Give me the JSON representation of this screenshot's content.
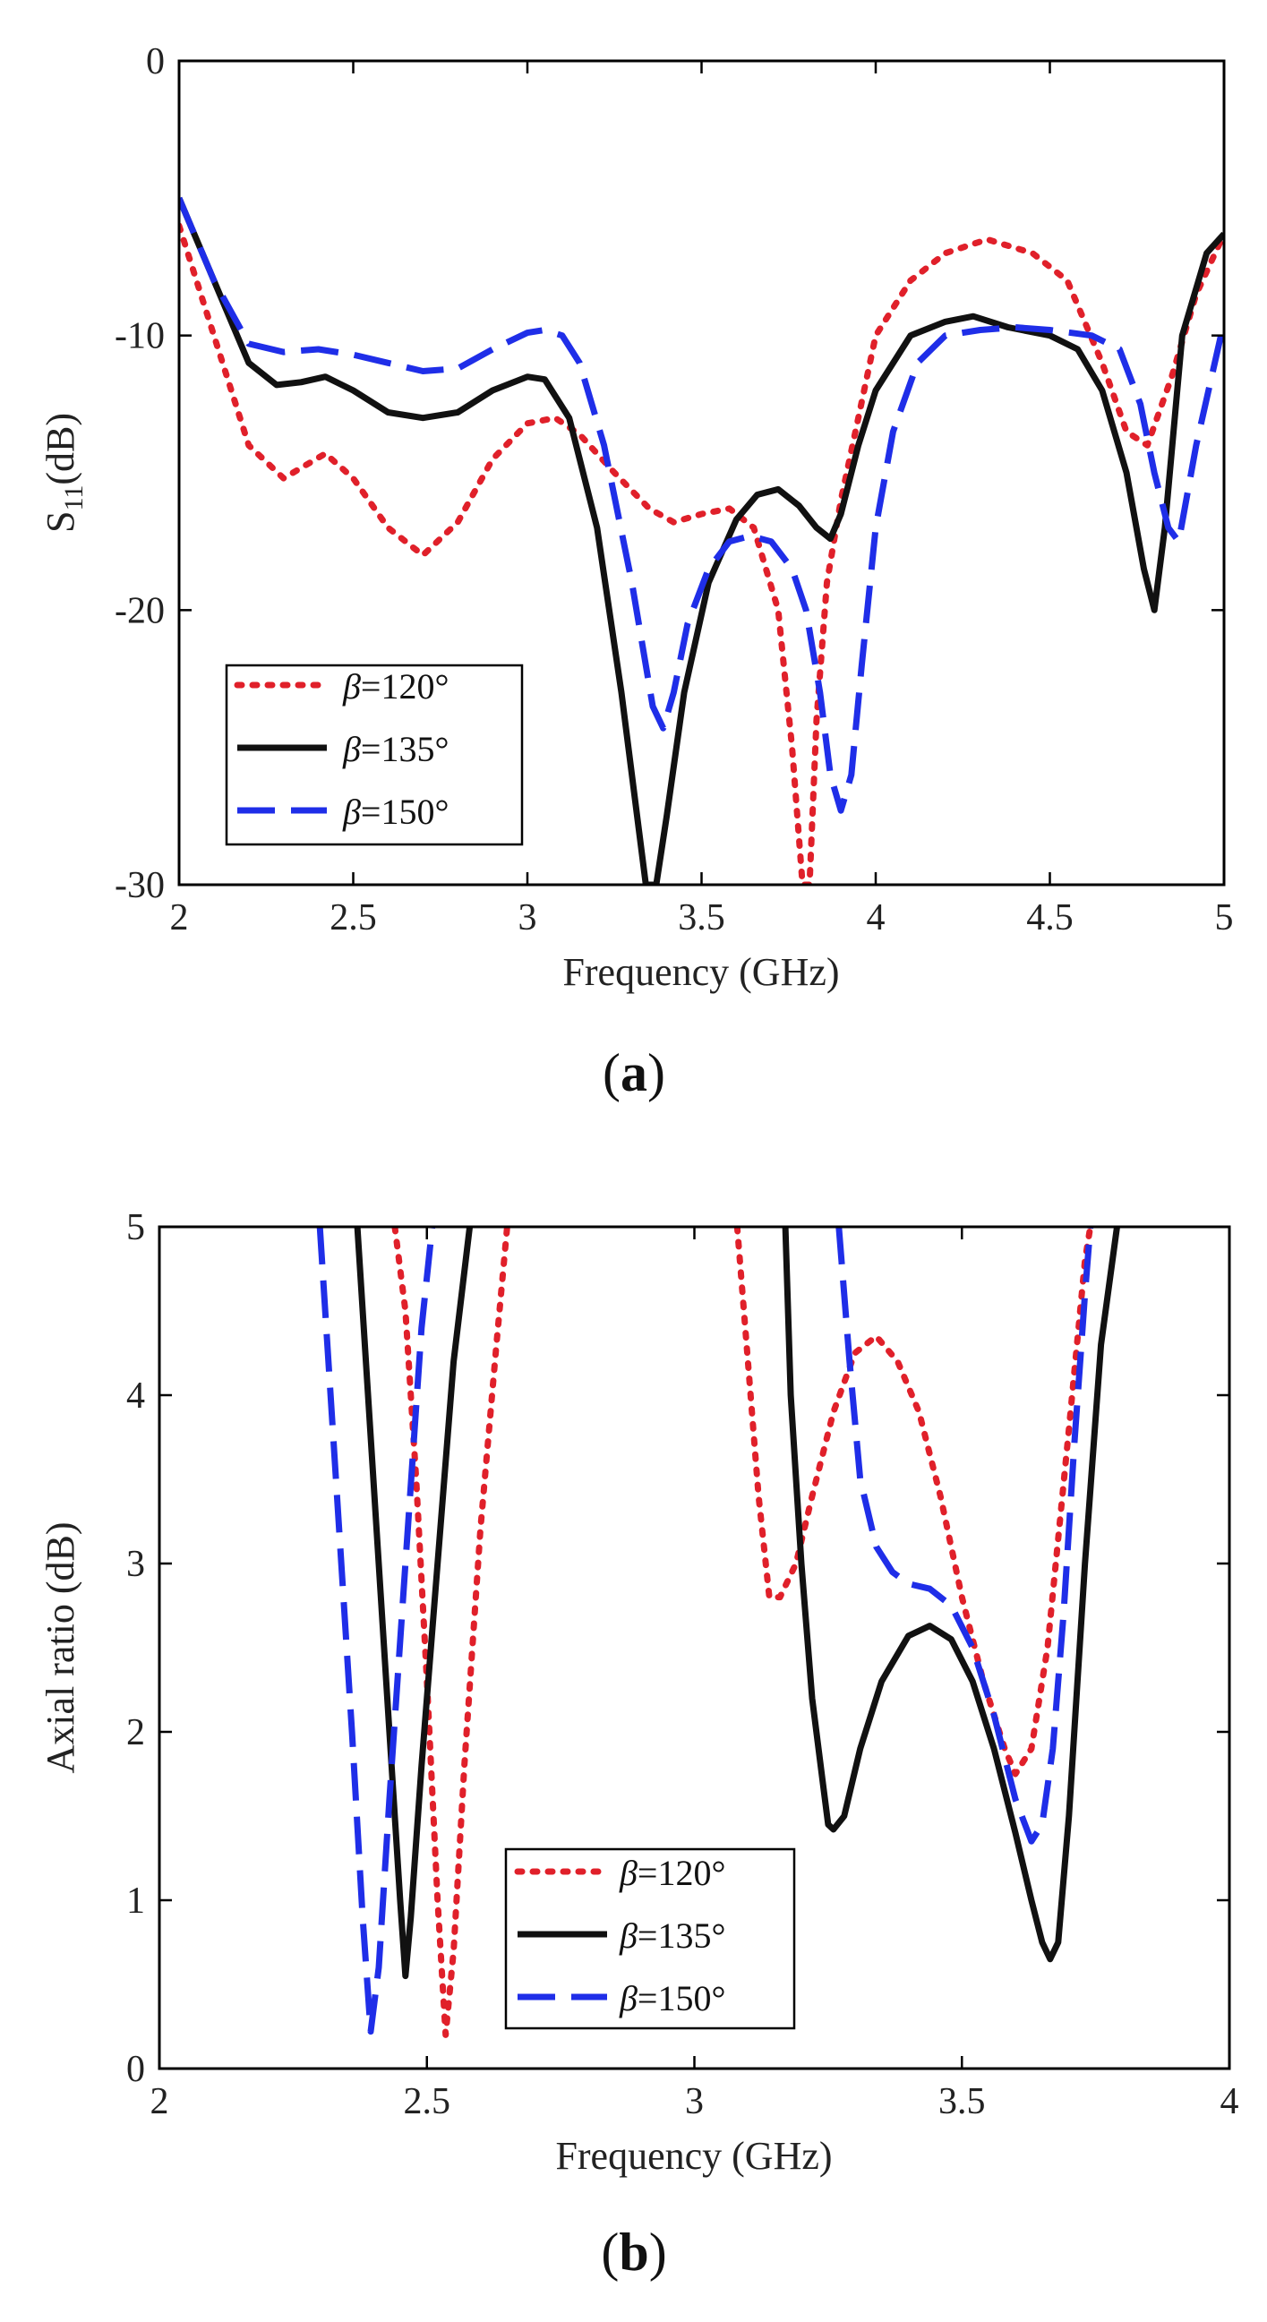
{
  "chart_data": [
    {
      "type": "line",
      "panel_label": "a",
      "xlabel": "Frequency (GHz)",
      "ylabel": "S",
      "ylabel_sub": "11",
      "ylabel_unit": "(dB)",
      "xlim": [
        2,
        5
      ],
      "ylim": [
        -30,
        0
      ],
      "xticks": [
        2,
        2.5,
        3,
        3.5,
        4,
        4.5,
        5
      ],
      "yticks": [
        -30,
        -20,
        -10,
        0
      ],
      "grid": false,
      "legend_position": "bottom-left",
      "series": [
        {
          "name": "=120°",
          "symbol": "β",
          "color": "#e0202a",
          "dash": "dotted",
          "x": [
            2.0,
            2.1,
            2.2,
            2.3,
            2.42,
            2.5,
            2.6,
            2.7,
            2.8,
            2.9,
            3.0,
            3.08,
            3.15,
            3.25,
            3.35,
            3.42,
            3.5,
            3.58,
            3.65,
            3.72,
            3.76,
            3.79,
            3.81,
            3.83,
            3.86,
            3.9,
            3.95,
            4.0,
            4.1,
            4.2,
            4.32,
            4.45,
            4.55,
            4.65,
            4.72,
            4.78,
            4.85,
            4.92,
            5.0
          ],
          "y": [
            -6.0,
            -10.0,
            -14.0,
            -15.2,
            -14.3,
            -15.2,
            -17.0,
            -18.0,
            -16.8,
            -14.5,
            -13.2,
            -13.0,
            -13.6,
            -15.0,
            -16.3,
            -16.8,
            -16.5,
            -16.3,
            -17.0,
            -20.0,
            -25.0,
            -30.0,
            -30.0,
            -24.0,
            -19.0,
            -16.0,
            -13.0,
            -10.0,
            -8.0,
            -7.0,
            -6.5,
            -7.0,
            -8.0,
            -11.0,
            -13.5,
            -14.0,
            -11.5,
            -8.5,
            -6.3
          ]
        },
        {
          "name": "=135°",
          "symbol": "β",
          "color": "#111111",
          "dash": "solid",
          "x": [
            2.0,
            2.1,
            2.2,
            2.28,
            2.35,
            2.42,
            2.5,
            2.6,
            2.7,
            2.8,
            2.9,
            3.0,
            3.05,
            3.12,
            3.2,
            3.27,
            3.32,
            3.34,
            3.37,
            3.4,
            3.45,
            3.52,
            3.6,
            3.66,
            3.72,
            3.78,
            3.83,
            3.87,
            3.9,
            3.95,
            4.0,
            4.1,
            4.2,
            4.28,
            4.38,
            4.5,
            4.58,
            4.65,
            4.72,
            4.77,
            4.8,
            4.83,
            4.88,
            4.95,
            5.0
          ],
          "y": [
            -5.0,
            -8.0,
            -11.0,
            -11.8,
            -11.7,
            -11.5,
            -12.0,
            -12.8,
            -13.0,
            -12.8,
            -12.0,
            -11.5,
            -11.6,
            -13.0,
            -17.0,
            -23.0,
            -28.0,
            -30.0,
            -30.0,
            -27.5,
            -23.0,
            -19.0,
            -16.7,
            -15.8,
            -15.6,
            -16.2,
            -17.0,
            -17.4,
            -16.5,
            -14.0,
            -12.0,
            -10.0,
            -9.5,
            -9.3,
            -9.7,
            -10.0,
            -10.5,
            -12.0,
            -15.0,
            -18.5,
            -20.0,
            -17.0,
            -10.0,
            -7.0,
            -6.3
          ]
        },
        {
          "name": "=150°",
          "symbol": "β",
          "color": "#1f2ee8",
          "dash": "dashed",
          "x": [
            2.0,
            2.1,
            2.2,
            2.3,
            2.4,
            2.5,
            2.6,
            2.7,
            2.8,
            2.9,
            3.0,
            3.05,
            3.1,
            3.15,
            3.22,
            3.3,
            3.36,
            3.39,
            3.42,
            3.46,
            3.52,
            3.58,
            3.64,
            3.7,
            3.76,
            3.8,
            3.84,
            3.87,
            3.9,
            3.93,
            3.96,
            4.0,
            4.05,
            4.12,
            4.2,
            4.3,
            4.4,
            4.5,
            4.62,
            4.7,
            4.76,
            4.8,
            4.84,
            4.87,
            4.92,
            5.0
          ],
          "y": [
            -5.0,
            -8.0,
            -10.3,
            -10.6,
            -10.5,
            -10.7,
            -11.0,
            -11.3,
            -11.2,
            -10.5,
            -9.9,
            -9.8,
            -10.0,
            -11.0,
            -14.0,
            -19.0,
            -23.5,
            -24.3,
            -23.0,
            -20.5,
            -18.5,
            -17.5,
            -17.3,
            -17.5,
            -18.5,
            -20.0,
            -23.0,
            -26.0,
            -27.3,
            -26.0,
            -22.0,
            -17.0,
            -13.5,
            -11.0,
            -10.0,
            -9.8,
            -9.7,
            -9.8,
            -10.0,
            -10.5,
            -12.5,
            -15.0,
            -17.0,
            -17.5,
            -14.0,
            -9.5
          ]
        }
      ]
    },
    {
      "type": "line",
      "panel_label": "b",
      "xlabel": "Frequency (GHz)",
      "ylabel": "Axial ratio (dB)",
      "xlim": [
        2,
        4
      ],
      "ylim": [
        0,
        5
      ],
      "xticks": [
        2,
        2.5,
        3,
        3.5,
        4
      ],
      "yticks": [
        0,
        1,
        2,
        3,
        4,
        5
      ],
      "grid": false,
      "legend_position": "bottom-center",
      "series": [
        {
          "name": "=120°",
          "symbol": "β",
          "color": "#e0202a",
          "dash": "dotted",
          "segments": [
            {
              "x": [
                2.44,
                2.46,
                2.48,
                2.5,
                2.52,
                2.535,
                2.55,
                2.57,
                2.6,
                2.63,
                2.65
              ],
              "y": [
                5.0,
                4.5,
                3.5,
                2.3,
                1.0,
                0.2,
                0.7,
                1.8,
                3.2,
                4.3,
                5.0
              ]
            },
            {
              "x": [
                3.08,
                3.1,
                3.12,
                3.14,
                3.16,
                3.19,
                3.22,
                3.26,
                3.3,
                3.34,
                3.38,
                3.42,
                3.46,
                3.5,
                3.54,
                3.58,
                3.6,
                3.63,
                3.66,
                3.7,
                3.73,
                3.74
              ],
              "y": [
                5.0,
                4.2,
                3.4,
                2.8,
                2.8,
                3.0,
                3.4,
                3.9,
                4.25,
                4.35,
                4.2,
                3.9,
                3.4,
                2.8,
                2.3,
                1.9,
                1.75,
                1.9,
                2.5,
                3.8,
                4.8,
                5.0
              ]
            }
          ]
        },
        {
          "name": "=135°",
          "symbol": "β",
          "color": "#111111",
          "dash": "solid",
          "segments": [
            {
              "x": [
                2.37,
                2.4,
                2.43,
                2.45,
                2.46,
                2.47,
                2.49,
                2.52,
                2.55,
                2.58
              ],
              "y": [
                5.0,
                3.5,
                2.0,
                1.0,
                0.55,
                0.9,
                1.8,
                3.0,
                4.2,
                5.0
              ]
            },
            {
              "x": [
                3.17,
                3.18,
                3.2,
                3.22,
                3.24,
                3.25,
                3.26,
                3.28,
                3.31,
                3.35,
                3.4,
                3.44,
                3.48,
                3.52,
                3.56,
                3.6,
                3.63,
                3.65,
                3.665,
                3.68,
                3.7,
                3.73,
                3.76,
                3.79
              ],
              "y": [
                5.0,
                4.0,
                3.0,
                2.2,
                1.7,
                1.45,
                1.42,
                1.5,
                1.9,
                2.3,
                2.57,
                2.63,
                2.55,
                2.3,
                1.9,
                1.4,
                1.0,
                0.75,
                0.65,
                0.75,
                1.5,
                3.0,
                4.3,
                5.0
              ]
            }
          ]
        },
        {
          "name": "=150°",
          "symbol": "β",
          "color": "#1f2ee8",
          "dash": "dashed",
          "segments": [
            {
              "x": [
                2.3,
                2.33,
                2.36,
                2.38,
                2.395,
                2.41,
                2.43,
                2.46,
                2.49,
                2.51
              ],
              "y": [
                5.0,
                3.5,
                2.0,
                0.9,
                0.22,
                0.6,
                1.6,
                3.0,
                4.4,
                5.0
              ]
            },
            {
              "x": [
                3.27,
                3.29,
                3.31,
                3.34,
                3.37,
                3.4,
                3.44,
                3.48,
                3.52,
                3.56,
                3.6,
                3.63,
                3.65,
                3.67,
                3.69,
                3.71,
                3.73,
                3.74
              ],
              "y": [
                5.0,
                4.2,
                3.5,
                3.1,
                2.95,
                2.88,
                2.85,
                2.75,
                2.5,
                2.1,
                1.6,
                1.35,
                1.45,
                1.9,
                2.7,
                3.7,
                4.6,
                5.0
              ]
            }
          ]
        }
      ]
    }
  ]
}
